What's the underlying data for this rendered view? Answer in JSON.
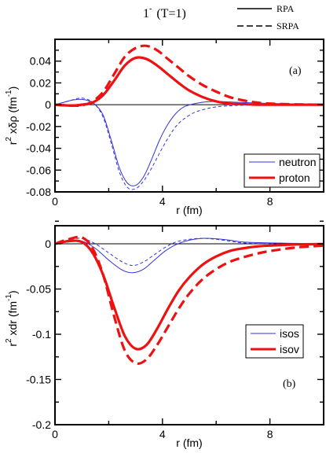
{
  "header": {
    "title_main": "1",
    "title_sup": "-",
    "title_rest": "(T=1)",
    "key": [
      {
        "label": "RPA",
        "dash": "solid"
      },
      {
        "label": "SRPA",
        "dash": "dashed"
      }
    ]
  },
  "colors": {
    "neutron": "#3333dd",
    "proton": "#ee1111"
  },
  "chart_data": [
    {
      "type": "line",
      "panel": "(a)",
      "xlabel": "r (fm)",
      "ylabel": {
        "pre": "r",
        "sup1": "2",
        "mid": " xδρ  (fm",
        "sup2": "-1",
        "post": ")"
      },
      "xlim": [
        0,
        10
      ],
      "ylim": [
        -0.08,
        0.06
      ],
      "xticks": [
        0,
        4,
        8
      ],
      "yticks": [
        0.04,
        0.02,
        0,
        -0.02,
        -0.04,
        -0.06,
        -0.08
      ],
      "ytick_labels": [
        "0.04",
        "0.02",
        "0",
        "-0.02",
        "-0.04",
        "-0.06",
        "-0.08"
      ],
      "legend": {
        "position": "bottom-right",
        "entries": [
          "neutron",
          "proton"
        ]
      },
      "series": [
        {
          "name": "neutron",
          "method": "RPA",
          "color": "#3333dd",
          "width": 1,
          "dash": "solid",
          "x": [
            0,
            0.3,
            0.6,
            0.9,
            1.2,
            1.5,
            1.8,
            2.1,
            2.4,
            2.7,
            3.0,
            3.3,
            3.6,
            3.9,
            4.2,
            4.5,
            4.8,
            5.2,
            5.6,
            6.0,
            6.5,
            7.0,
            8.0,
            9.0,
            10.0
          ],
          "y": [
            0,
            0.002,
            0.004,
            0.005,
            0.004,
            0.0,
            -0.01,
            -0.033,
            -0.058,
            -0.072,
            -0.074,
            -0.066,
            -0.05,
            -0.032,
            -0.018,
            -0.008,
            -0.002,
            0.001,
            0.0025,
            0.003,
            0.0025,
            0.002,
            0.0012,
            0.0006,
            0.0003
          ]
        },
        {
          "name": "neutron",
          "method": "SRPA",
          "color": "#3333dd",
          "width": 1,
          "dash": "dashed",
          "x": [
            0,
            0.3,
            0.6,
            0.9,
            1.2,
            1.5,
            1.8,
            2.1,
            2.4,
            2.7,
            3.0,
            3.3,
            3.6,
            3.9,
            4.2,
            4.5,
            4.8,
            5.2,
            5.6,
            6.0,
            6.5,
            7.0,
            8.0,
            9.0,
            10.0
          ],
          "y": [
            0,
            0.002,
            0.004,
            0.006,
            0.005,
            0.0,
            -0.012,
            -0.036,
            -0.062,
            -0.076,
            -0.077,
            -0.07,
            -0.058,
            -0.044,
            -0.031,
            -0.02,
            -0.013,
            -0.007,
            -0.004,
            -0.002,
            -0.001,
            -0.0005,
            0.0,
            0.0002,
            0.0003
          ]
        },
        {
          "name": "proton",
          "method": "RPA",
          "color": "#ee1111",
          "width": 3.2,
          "dash": "solid",
          "x": [
            0,
            0.6,
            1.0,
            1.4,
            1.8,
            2.2,
            2.6,
            3.0,
            3.4,
            3.8,
            4.2,
            4.6,
            5.0,
            5.5,
            6.0,
            6.5,
            7.0,
            7.5,
            8.0,
            9.0,
            10.0
          ],
          "y": [
            0,
            -0.0008,
            0.0,
            0.002,
            0.009,
            0.022,
            0.036,
            0.043,
            0.042,
            0.036,
            0.028,
            0.02,
            0.013,
            0.007,
            0.003,
            0.001,
            0.0005,
            0.0,
            0.0,
            0.0,
            0.0
          ]
        },
        {
          "name": "proton",
          "method": "SRPA",
          "color": "#ee1111",
          "width": 3.2,
          "dash": "dashed",
          "x": [
            0,
            0.6,
            1.0,
            1.4,
            1.8,
            2.2,
            2.6,
            3.0,
            3.4,
            3.8,
            4.2,
            4.6,
            5.0,
            5.5,
            6.0,
            6.5,
            7.0,
            7.5,
            8.0,
            9.0,
            10.0
          ],
          "y": [
            0,
            -0.0008,
            -0.0005,
            0.003,
            0.012,
            0.028,
            0.044,
            0.052,
            0.054,
            0.05,
            0.042,
            0.034,
            0.026,
            0.018,
            0.012,
            0.007,
            0.004,
            0.002,
            0.001,
            0.0003,
            0.0
          ]
        }
      ]
    },
    {
      "type": "line",
      "panel": "(b)",
      "xlabel": "r (fm)",
      "ylabel": {
        "pre": "r",
        "sup1": "2",
        "mid": " xdr  (fm",
        "sup2": "-1",
        "post": ")"
      },
      "xlim": [
        0,
        10
      ],
      "ylim": [
        -0.2,
        0.02
      ],
      "xticks": [
        0,
        4,
        8
      ],
      "yticks": [
        0,
        -0.05,
        -0.1,
        -0.15,
        -0.2
      ],
      "ytick_labels": [
        "0",
        "-0.05",
        "-0.1",
        "-0.15",
        "-0.2"
      ],
      "legend": {
        "position": "middle-right",
        "entries": [
          "isos",
          "isov"
        ]
      },
      "series": [
        {
          "name": "isos",
          "method": "RPA",
          "color": "#3333dd",
          "width": 1,
          "dash": "solid",
          "x": [
            0,
            0.5,
            1.0,
            1.5,
            2.0,
            2.5,
            2.9,
            3.3,
            3.7,
            4.1,
            4.5,
            5.0,
            5.5,
            6.0,
            6.5,
            7.0,
            8.0,
            9.0,
            10.0
          ],
          "y": [
            0,
            0.002,
            0.003,
            -0.005,
            -0.018,
            -0.029,
            -0.032,
            -0.028,
            -0.018,
            -0.008,
            -0.001,
            0.004,
            0.006,
            0.0055,
            0.004,
            0.002,
            0.001,
            0.0005,
            0.0002
          ]
        },
        {
          "name": "isos",
          "method": "SRPA",
          "color": "#3333dd",
          "width": 1,
          "dash": "dashed",
          "x": [
            0,
            0.5,
            1.0,
            1.5,
            2.0,
            2.5,
            2.9,
            3.3,
            3.7,
            4.1,
            4.5,
            5.0,
            5.5,
            6.0,
            6.5,
            7.0,
            8.0,
            9.0,
            10.0
          ],
          "y": [
            0,
            0.004,
            0.006,
            0.0,
            -0.01,
            -0.02,
            -0.024,
            -0.02,
            -0.012,
            -0.004,
            0.002,
            0.005,
            0.006,
            0.005,
            0.003,
            0.001,
            0.0,
            -0.001,
            -0.0015
          ]
        },
        {
          "name": "isov",
          "method": "RPA",
          "color": "#ee1111",
          "width": 3.2,
          "dash": "solid",
          "x": [
            0,
            0.5,
            1.0,
            1.4,
            1.8,
            2.2,
            2.6,
            3.0,
            3.4,
            3.8,
            4.2,
            4.6,
            5.0,
            5.5,
            6.0,
            6.5,
            7.0,
            7.5,
            8.0,
            9.0,
            10.0
          ],
          "y": [
            0,
            0.003,
            0.002,
            -0.01,
            -0.035,
            -0.07,
            -0.102,
            -0.116,
            -0.112,
            -0.094,
            -0.072,
            -0.052,
            -0.037,
            -0.023,
            -0.014,
            -0.008,
            -0.005,
            -0.003,
            -0.002,
            -0.0007,
            -0.0003
          ]
        },
        {
          "name": "isov",
          "method": "SRPA",
          "color": "#ee1111",
          "width": 3.2,
          "dash": "dashed",
          "x": [
            0,
            0.5,
            1.0,
            1.4,
            1.8,
            2.2,
            2.6,
            3.0,
            3.4,
            3.8,
            4.2,
            4.6,
            5.0,
            5.5,
            6.0,
            6.5,
            7.0,
            7.5,
            8.0,
            9.0,
            10.0
          ],
          "y": [
            0,
            0.005,
            0.007,
            -0.005,
            -0.035,
            -0.08,
            -0.118,
            -0.132,
            -0.128,
            -0.112,
            -0.092,
            -0.072,
            -0.055,
            -0.039,
            -0.028,
            -0.02,
            -0.015,
            -0.011,
            -0.008,
            -0.004,
            -0.002
          ]
        }
      ]
    }
  ]
}
